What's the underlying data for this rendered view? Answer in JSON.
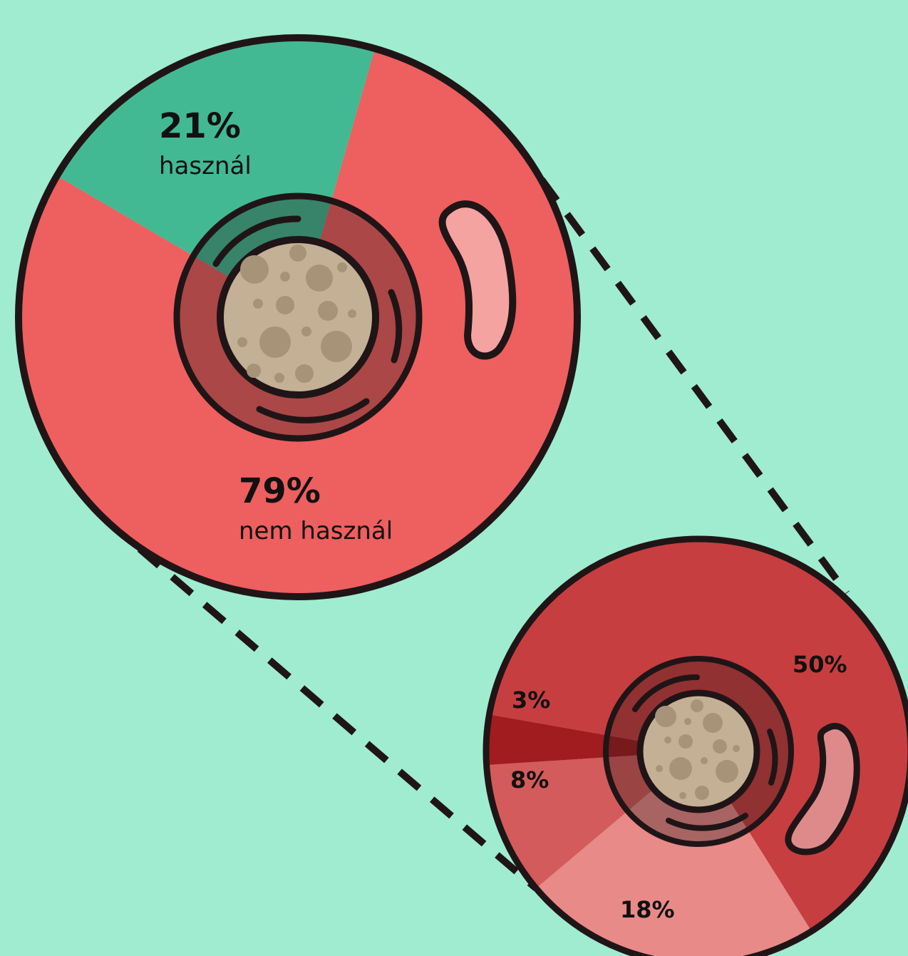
{
  "colors": {
    "background": "#a0ecd0",
    "outline": "#1f1517",
    "green": "#43b993",
    "red": "#ee5f5f",
    "dark_red": "#c73e40",
    "deep_red": "#a11c1f",
    "mid_red": "#d45b5b",
    "light_red": "#e88a88"
  },
  "chart_data": [
    {
      "type": "pie",
      "slices": [
        {
          "value": 21,
          "label": "21%",
          "description": "használ",
          "color": "#43b993"
        },
        {
          "value": 79,
          "label": "79%",
          "description": "nem használ",
          "color": "#ee5f5f"
        }
      ]
    },
    {
      "type": "pie",
      "slices": [
        {
          "value": 50,
          "label": "50%",
          "color": "#c73e40"
        },
        {
          "value": 18,
          "label": "18%",
          "color": "#e88a88"
        },
        {
          "value": 8,
          "label": "8%",
          "color": "#d45b5b"
        },
        {
          "value": 3,
          "label": "3%",
          "color": "#a11c1f"
        }
      ]
    }
  ]
}
